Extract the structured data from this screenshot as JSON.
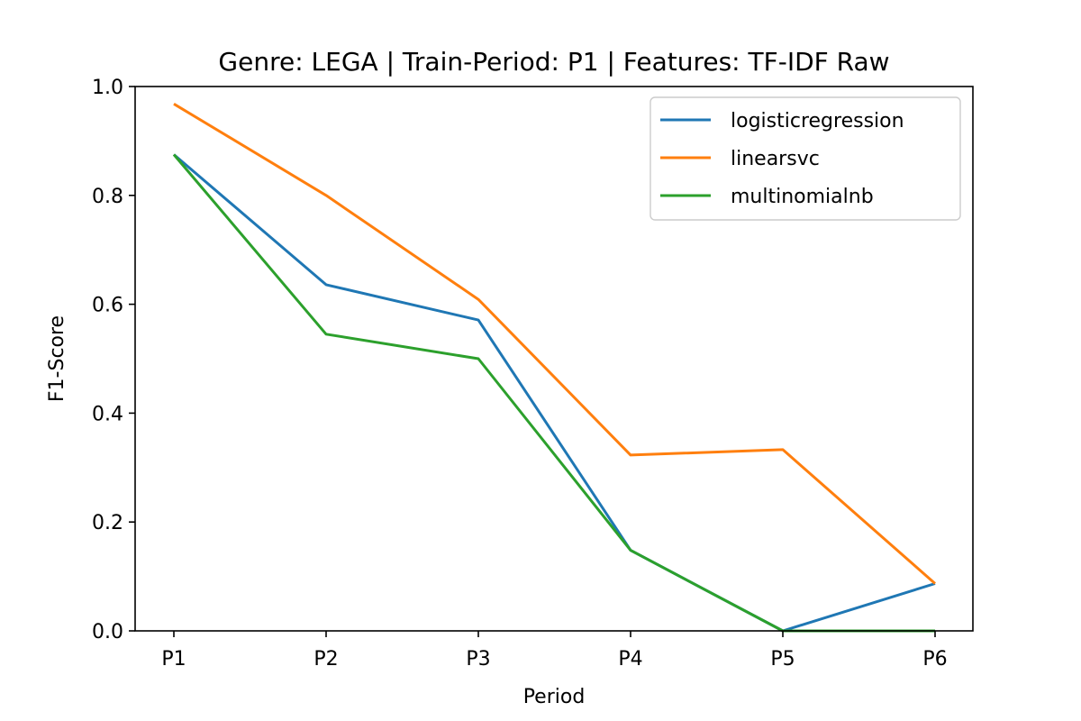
{
  "chart_data": {
    "type": "line",
    "title": "Genre: LEGA | Train-Period: P1 | Features: TF-IDF Raw",
    "xlabel": "Period",
    "ylabel": "F1-Score",
    "categories": [
      "P1",
      "P2",
      "P3",
      "P4",
      "P5",
      "P6"
    ],
    "ylim": [
      0.0,
      1.0
    ],
    "yticks": [
      0.0,
      0.2,
      0.4,
      0.6,
      0.8,
      1.0
    ],
    "ytick_labels": [
      "0.0",
      "0.2",
      "0.4",
      "0.6",
      "0.8",
      "1.0"
    ],
    "grid": false,
    "legend_position": "top-right",
    "series": [
      {
        "name": "logisticregression",
        "color": "#1f77b4",
        "values": [
          0.875,
          0.636,
          0.571,
          0.148,
          0.0,
          0.087
        ]
      },
      {
        "name": "linearsvc",
        "color": "#ff7f0e",
        "values": [
          0.968,
          0.8,
          0.609,
          0.323,
          0.333,
          0.087
        ]
      },
      {
        "name": "multinomialnb",
        "color": "#2ca02c",
        "values": [
          0.875,
          0.545,
          0.5,
          0.148,
          0.0,
          0.0
        ]
      }
    ]
  }
}
